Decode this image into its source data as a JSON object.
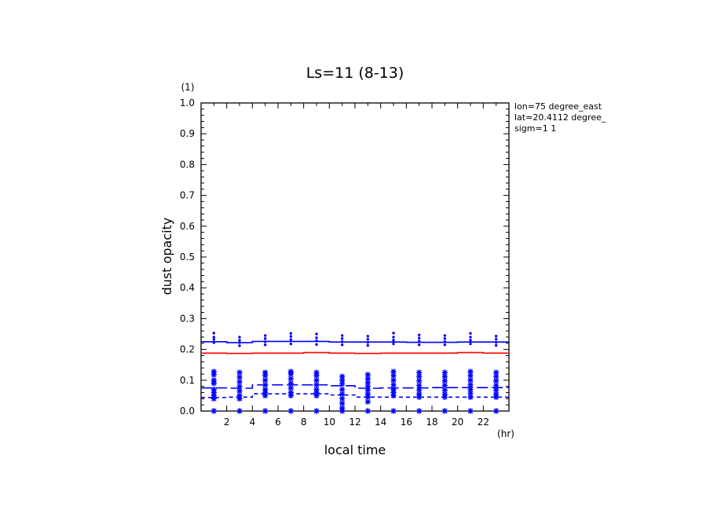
{
  "chart_data": {
    "type": "line",
    "title": "Ls=11 (8-13)",
    "xlabel": "local time",
    "ylabel": "dust opacity",
    "x_unit": "(hr)",
    "y_unit": "(1)",
    "xlim": [
      0,
      24
    ],
    "ylim": [
      0,
      1.0
    ],
    "xticks": [
      2,
      4,
      6,
      8,
      10,
      12,
      14,
      16,
      18,
      20,
      22
    ],
    "yticks": [
      0.0,
      0.1,
      0.2,
      0.3,
      0.4,
      0.5,
      0.6,
      0.7,
      0.8,
      0.9,
      1.0
    ],
    "info_lines": [
      "lon=75 degree_east",
      "lat=20.4112 degree_",
      "sigm=1 1"
    ],
    "x": [
      1,
      3,
      5,
      7,
      9,
      11,
      13,
      15,
      17,
      19,
      21,
      23
    ],
    "series": [
      {
        "style": "solid",
        "color": "#0000ff",
        "values": [
          0.225,
          0.222,
          0.226,
          0.226,
          0.226,
          0.224,
          0.224,
          0.224,
          0.223,
          0.223,
          0.224,
          0.224
        ]
      },
      {
        "style": "solid",
        "color": "#ff0000",
        "values": [
          0.188,
          0.187,
          0.188,
          0.188,
          0.19,
          0.188,
          0.187,
          0.188,
          0.188,
          0.188,
          0.19,
          0.188
        ]
      },
      {
        "style": "long-dash",
        "color": "#0000ff",
        "values": [
          0.075,
          0.074,
          0.085,
          0.085,
          0.085,
          0.082,
          0.074,
          0.075,
          0.075,
          0.076,
          0.076,
          0.076
        ]
      },
      {
        "style": "dashed",
        "color": "#0000ff",
        "values": [
          0.044,
          0.045,
          0.056,
          0.056,
          0.056,
          0.052,
          0.045,
          0.045,
          0.045,
          0.045,
          0.045,
          0.045
        ]
      }
    ],
    "scatter_upper": {
      "color": "#0000ff",
      "points": [
        [
          1,
          [
            0.253,
            0.24,
            0.232,
            0.222
          ]
        ],
        [
          3,
          [
            0.24,
            0.23,
            0.222,
            0.212
          ]
        ],
        [
          5,
          [
            0.245,
            0.235,
            0.225,
            0.215
          ]
        ],
        [
          7,
          [
            0.252,
            0.242,
            0.232,
            0.218
          ]
        ],
        [
          9,
          [
            0.25,
            0.238,
            0.228,
            0.216
          ]
        ],
        [
          11,
          [
            0.245,
            0.235,
            0.225,
            0.215
          ]
        ],
        [
          13,
          [
            0.243,
            0.233,
            0.223,
            0.213
          ]
        ],
        [
          15,
          [
            0.253,
            0.24,
            0.23,
            0.218
          ]
        ],
        [
          17,
          [
            0.247,
            0.237,
            0.227,
            0.215
          ]
        ],
        [
          19,
          [
            0.245,
            0.235,
            0.225,
            0.215
          ]
        ],
        [
          21,
          [
            0.252,
            0.24,
            0.23,
            0.218
          ]
        ],
        [
          23,
          [
            0.243,
            0.233,
            0.223,
            0.213
          ]
        ]
      ]
    },
    "scatter_lower": {
      "color": "#0000ff",
      "points": [
        [
          1,
          [
            0.128,
            0.118,
            0.1,
            0.09,
            0.07,
            0.06,
            0.05,
            0.04,
            0.0
          ]
        ],
        [
          3,
          [
            0.125,
            0.11,
            0.095,
            0.08,
            0.065,
            0.05,
            0.04,
            0.0
          ]
        ],
        [
          5,
          [
            0.125,
            0.115,
            0.1,
            0.085,
            0.07,
            0.06,
            0.05,
            0.0
          ]
        ],
        [
          7,
          [
            0.128,
            0.12,
            0.105,
            0.09,
            0.075,
            0.06,
            0.05,
            0.0
          ]
        ],
        [
          9,
          [
            0.125,
            0.115,
            0.1,
            0.085,
            0.07,
            0.06,
            0.05,
            0.0
          ]
        ],
        [
          11,
          [
            0.112,
            0.1,
            0.088,
            0.07,
            0.055,
            0.04,
            0.025,
            0.01,
            0.0
          ]
        ],
        [
          13,
          [
            0.118,
            0.105,
            0.092,
            0.08,
            0.068,
            0.055,
            0.045,
            0.03,
            0.0
          ]
        ],
        [
          15,
          [
            0.128,
            0.115,
            0.1,
            0.085,
            0.07,
            0.06,
            0.05,
            0.0
          ]
        ],
        [
          17,
          [
            0.125,
            0.112,
            0.098,
            0.083,
            0.068,
            0.055,
            0.045,
            0.0
          ]
        ],
        [
          19,
          [
            0.125,
            0.112,
            0.098,
            0.083,
            0.068,
            0.055,
            0.045,
            0.0
          ]
        ],
        [
          21,
          [
            0.128,
            0.115,
            0.1,
            0.085,
            0.07,
            0.058,
            0.045,
            0.0
          ]
        ],
        [
          23,
          [
            0.125,
            0.112,
            0.098,
            0.083,
            0.068,
            0.055,
            0.045,
            0.0
          ]
        ]
      ]
    }
  }
}
